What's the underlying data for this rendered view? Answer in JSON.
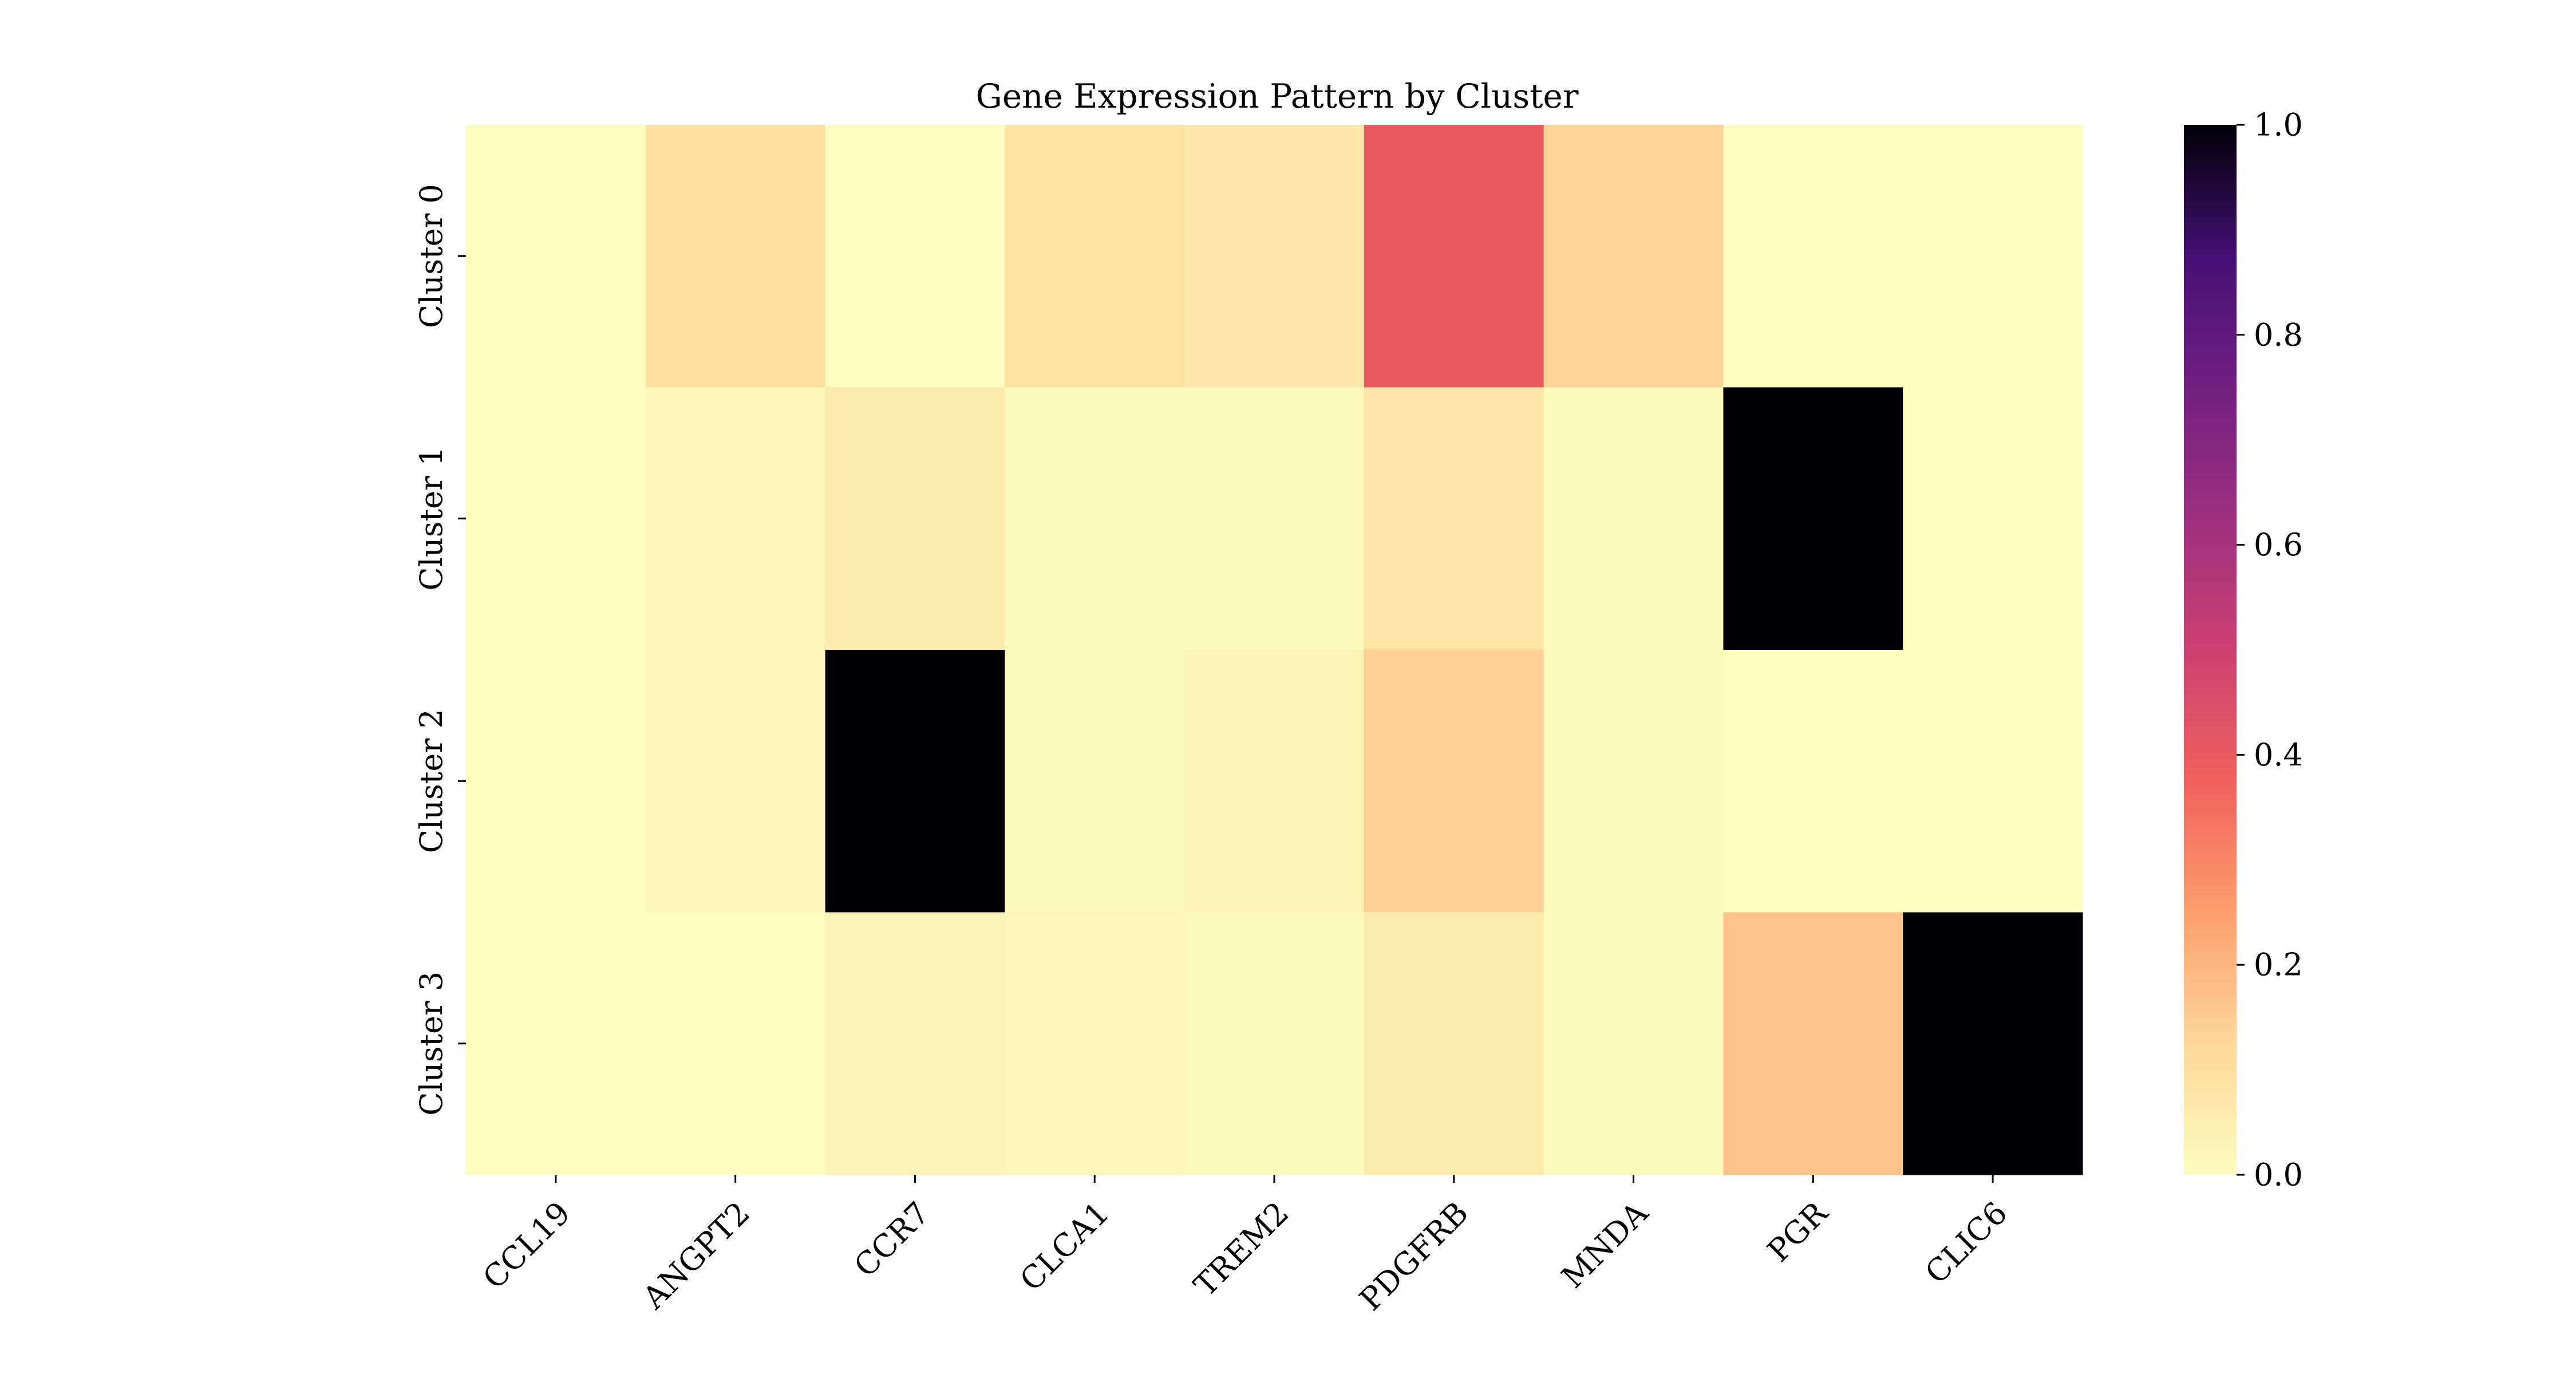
{
  "chart_data": {
    "type": "heatmap",
    "title": "Gene Expression Pattern by Cluster",
    "xlabel": "",
    "ylabel": "",
    "columns": [
      "CCL19",
      "ANGPT2",
      "CCR7",
      "CLCA1",
      "TREM2",
      "PDGFRB",
      "MNDA",
      "PGR",
      "CLIC6"
    ],
    "rows": [
      "Cluster 0",
      "Cluster 1",
      "Cluster 2",
      "Cluster 3"
    ],
    "values": [
      [
        0.0,
        0.1,
        0.0,
        0.09,
        0.07,
        0.4,
        0.13,
        0.0,
        0.0
      ],
      [
        0.0,
        0.02,
        0.06,
        0.01,
        0.01,
        0.08,
        0.01,
        1.0,
        0.0
      ],
      [
        0.0,
        0.02,
        1.0,
        0.01,
        0.03,
        0.14,
        0.01,
        0.0,
        0.0
      ],
      [
        0.0,
        0.0,
        0.03,
        0.02,
        0.01,
        0.06,
        0.01,
        0.17,
        1.0
      ]
    ],
    "colorbar": {
      "colormap": "magma_r",
      "range": [
        0.0,
        1.0
      ],
      "ticks": [
        "0.0",
        "0.2",
        "0.4",
        "0.6",
        "0.8",
        "1.0"
      ]
    }
  }
}
